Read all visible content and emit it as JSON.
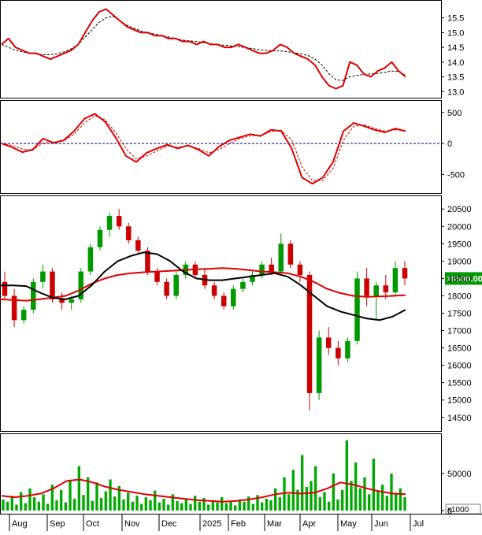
{
  "colors": {
    "up_candle": "#009900",
    "down_candle": "#cc0000",
    "red_line": "#dd0000",
    "black_line": "#000000",
    "volume_bar": "#00aa00",
    "dashed": "#000000",
    "zero_line": "#000099",
    "price_tag_bg": "#009900",
    "price_tag_text": "#ffffff"
  },
  "chart_data": [
    {
      "type": "line",
      "panel": "top-indicator",
      "yticks": [
        "15.5",
        "15.0",
        "14.5",
        "14.0",
        "13.5",
        "13.0"
      ],
      "ylim": [
        12.9,
        16.0
      ],
      "series": [
        {
          "style": "solid-red",
          "values": [
            14.6,
            14.8,
            14.5,
            14.4,
            14.3,
            14.3,
            14.2,
            14.1,
            14.2,
            14.3,
            14.4,
            14.6,
            15.0,
            15.4,
            15.7,
            15.8,
            15.6,
            15.4,
            15.2,
            15.1,
            15.0,
            15.0,
            14.9,
            14.9,
            14.8,
            14.8,
            14.7,
            14.7,
            14.6,
            14.7,
            14.6,
            14.6,
            14.5,
            14.5,
            14.6,
            14.5,
            14.4,
            14.3,
            14.3,
            14.4,
            14.6,
            14.5,
            14.3,
            14.2,
            14.1,
            13.9,
            13.5,
            13.2,
            13.1,
            13.2,
            14.0,
            13.9,
            13.6,
            13.5,
            13.7,
            13.8,
            14.0,
            13.7,
            13.5
          ]
        },
        {
          "style": "dashed-black",
          "values": [
            14.6,
            14.5,
            14.4,
            14.35,
            14.3,
            14.28,
            14.25,
            14.25,
            14.28,
            14.35,
            14.45,
            14.6,
            14.85,
            15.1,
            15.35,
            15.5,
            15.55,
            15.4,
            15.25,
            15.15,
            15.05,
            15.0,
            14.95,
            14.9,
            14.85,
            14.8,
            14.75,
            14.72,
            14.7,
            14.66,
            14.62,
            14.6,
            14.57,
            14.55,
            14.52,
            14.5,
            14.46,
            14.42,
            14.4,
            14.38,
            14.38,
            14.35,
            14.32,
            14.28,
            14.22,
            14.1,
            13.9,
            13.6,
            13.4,
            13.38,
            13.5,
            13.55,
            13.58,
            13.6,
            13.62,
            13.65,
            13.7,
            13.68,
            13.55
          ]
        }
      ]
    },
    {
      "type": "line",
      "panel": "oscillator",
      "yticks": [
        "500",
        "0",
        "-500"
      ],
      "ylim": [
        -750,
        650
      ],
      "series": [
        {
          "style": "solid-red",
          "values": [
            0,
            -60,
            -140,
            -100,
            80,
            10,
            50,
            200,
            400,
            480,
            350,
            100,
            -200,
            -300,
            -150,
            -80,
            -20,
            -80,
            -30,
            -100,
            -200,
            -50,
            50,
            100,
            150,
            120,
            220,
            200,
            -80,
            -550,
            -650,
            -550,
            -300,
            200,
            330,
            280,
            220,
            180,
            240,
            200
          ]
        },
        {
          "style": "dashed-red",
          "values": [
            0,
            -30,
            -90,
            -110,
            10,
            20,
            40,
            150,
            330,
            450,
            380,
            180,
            -80,
            -250,
            -200,
            -120,
            -40,
            -60,
            -40,
            -80,
            -150,
            -100,
            0,
            80,
            120,
            130,
            190,
            210,
            60,
            -380,
            -600,
            -600,
            -400,
            50,
            280,
            300,
            240,
            200,
            220,
            210
          ]
        }
      ]
    },
    {
      "type": "candlestick",
      "panel": "price",
      "yticks": [
        "20500",
        "20000",
        "19500",
        "19000",
        "18500",
        "18000",
        "17500",
        "17000",
        "16500",
        "16000",
        "15500",
        "15000",
        "14500"
      ],
      "ylim": [
        14200,
        20800
      ],
      "last_price_label": "18500.00",
      "candles": [
        [
          18400,
          18700,
          17900,
          18000
        ],
        [
          18000,
          18200,
          17100,
          17300
        ],
        [
          17300,
          17700,
          17200,
          17600
        ],
        [
          17600,
          18500,
          17500,
          18400
        ],
        [
          18400,
          18900,
          18200,
          18700
        ],
        [
          18700,
          18800,
          17800,
          17900
        ],
        [
          17900,
          18100,
          17600,
          17800
        ],
        [
          17800,
          18000,
          17600,
          17900
        ],
        [
          17900,
          18800,
          17800,
          18700
        ],
        [
          18700,
          19500,
          18600,
          19400
        ],
        [
          19400,
          20000,
          19300,
          19900
        ],
        [
          19900,
          20400,
          19700,
          20300
        ],
        [
          20300,
          20500,
          19900,
          20000
        ],
        [
          20000,
          20100,
          19500,
          19600
        ],
        [
          19600,
          19700,
          19200,
          19300
        ],
        [
          19300,
          19400,
          18600,
          18700
        ],
        [
          18700,
          18800,
          18300,
          18400
        ],
        [
          18400,
          18500,
          17900,
          18000
        ],
        [
          18000,
          18700,
          17900,
          18600
        ],
        [
          18600,
          19000,
          18500,
          18900
        ],
        [
          18900,
          19000,
          18500,
          18600
        ],
        [
          18600,
          18800,
          18200,
          18300
        ],
        [
          18300,
          18400,
          17900,
          18000
        ],
        [
          18000,
          18100,
          17600,
          17700
        ],
        [
          17700,
          18300,
          17600,
          18200
        ],
        [
          18200,
          18500,
          18100,
          18400
        ],
        [
          18400,
          18700,
          18300,
          18600
        ],
        [
          18600,
          19000,
          18500,
          18900
        ],
        [
          18900,
          19100,
          18600,
          18700
        ],
        [
          18700,
          19800,
          18600,
          19500
        ],
        [
          19500,
          19600,
          18800,
          18900
        ],
        [
          18900,
          19000,
          18400,
          18600
        ],
        [
          18600,
          18700,
          14700,
          15200
        ],
        [
          15200,
          17000,
          15000,
          16800
        ],
        [
          16800,
          17100,
          16300,
          16500
        ],
        [
          16500,
          16700,
          16000,
          16200
        ],
        [
          16200,
          16800,
          16100,
          16700
        ],
        [
          16700,
          18700,
          16600,
          18500
        ],
        [
          18500,
          18800,
          17700,
          18000
        ],
        [
          18000,
          18400,
          17300,
          18300
        ],
        [
          18300,
          18600,
          17900,
          18100
        ],
        [
          18100,
          19000,
          18000,
          18800
        ],
        [
          18800,
          19000,
          18300,
          18500
        ]
      ],
      "series": [
        {
          "style": "red-ma",
          "values": [
            17900,
            17880,
            17860,
            17900,
            17950,
            18000,
            18150,
            18350,
            18500,
            18600,
            18650,
            18680,
            18700,
            18720,
            18740,
            18760,
            18780,
            18800,
            18780,
            18740,
            18700,
            18680,
            18650,
            18550,
            18400,
            18200,
            18080,
            18000,
            17970,
            17980,
            18000,
            18020
          ]
        },
        {
          "style": "black-ma",
          "values": [
            18300,
            18300,
            18280,
            18100,
            17950,
            17900,
            18000,
            18300,
            18700,
            19000,
            19150,
            19250,
            19200,
            19000,
            18700,
            18500,
            18450,
            18450,
            18500,
            18550,
            18600,
            18650,
            18550,
            18300,
            18000,
            17700,
            17550,
            17450,
            17350,
            17300,
            17400,
            17600
          ]
        }
      ]
    },
    {
      "type": "bar",
      "panel": "volume",
      "yticks": [
        "50000",
        "0"
      ],
      "ylim": [
        0,
        100000
      ],
      "unit_label": "x1000",
      "values": [
        15000,
        12000,
        20000,
        8000,
        25000,
        10000,
        30000,
        18000,
        12000,
        22000,
        9000,
        35000,
        14000,
        28000,
        11000,
        40000,
        16000,
        60000,
        21000,
        45000,
        13000,
        38000,
        17000,
        26000,
        42000,
        19000,
        33000,
        15000,
        24000,
        12000,
        20000,
        9000,
        18000,
        14000,
        27000,
        11000,
        16000,
        8000,
        22000,
        13000,
        10000,
        15000,
        9000,
        20000,
        12000,
        17000,
        8000,
        14000,
        11000,
        18000,
        10000,
        13000,
        7000,
        15000,
        12000,
        19000,
        9000,
        21000,
        11000,
        16000,
        14000,
        30000,
        18000,
        45000,
        22000,
        55000,
        28000,
        75000,
        32000,
        40000,
        60000,
        18000,
        25000,
        12000,
        50000,
        15000,
        28000,
        95000,
        40000,
        65000,
        30000,
        45000,
        22000,
        70000,
        26000,
        35000,
        20000,
        50000,
        24000,
        30000,
        18000
      ],
      "series": [
        {
          "style": "red-ma",
          "values": [
            20000,
            18000,
            20000,
            23000,
            30000,
            40000,
            42000,
            38000,
            32000,
            28000,
            25000,
            22000,
            20000,
            18000,
            16000,
            14000,
            13000,
            12000,
            13000,
            15000,
            18000,
            22000,
            24000,
            23000,
            24000,
            30000,
            38000,
            35000,
            30000,
            26000,
            23000,
            22000
          ]
        }
      ]
    },
    {
      "type": "axis",
      "panel": "time-axis",
      "xlabels": [
        "Aug",
        "Sep",
        "Oct",
        "Nov",
        "Dec",
        "2025",
        "Feb",
        "Mar",
        "Apr",
        "May",
        "Jun",
        "Jul"
      ]
    }
  ]
}
